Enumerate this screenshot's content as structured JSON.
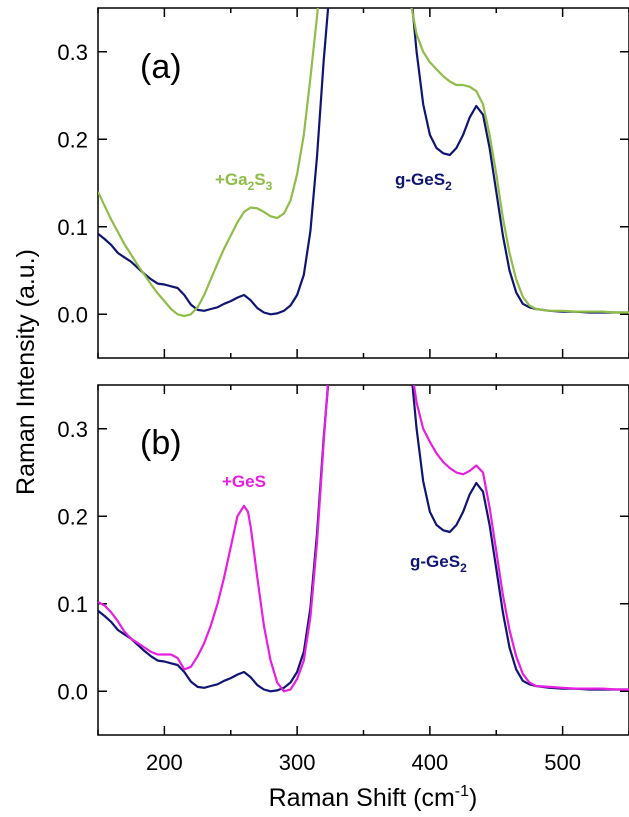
{
  "chart_data": {
    "type": "line",
    "xlabel": "Raman Shift (cm",
    "xlabel_sup": "-1",
    "xlabel_end": ")",
    "ylabel": "Raman Intensity (a.u.)",
    "xlim": [
      150,
      550
    ],
    "ylim": [
      -0.05,
      0.35
    ],
    "x_ticks": [
      "200",
      "300",
      "400",
      "500"
    ],
    "y_ticks": [
      "0.0",
      "0.1",
      "0.2",
      "0.3"
    ],
    "x_tick_values": [
      200,
      300,
      400,
      500
    ],
    "y_tick_values": [
      0.0,
      0.1,
      0.2,
      0.3
    ],
    "colors": {
      "g_ges2": "#101573",
      "ga2s3": "#8fbd48",
      "ges": "#e81ee0"
    },
    "panels": [
      {
        "label": "(a)",
        "annotations": [
          {
            "text": "+Ga",
            "sub": "2",
            "text2": "S",
            "sub2": "3",
            "color": "#8fbd48"
          },
          {
            "text": "g-GeS",
            "sub": "2",
            "color": "#101573"
          }
        ],
        "series": [
          {
            "key": "g_ges2",
            "x": [
              150,
              155,
              160,
              165,
              170,
              175,
              180,
              185,
              190,
              195,
              200,
              205,
              210,
              215,
              220,
              225,
              230,
              235,
              240,
              245,
              250,
              255,
              260,
              265,
              270,
              275,
              280,
              285,
              290,
              295,
              300,
              305,
              310,
              315,
              320,
              325,
              330,
              380,
              385,
              390,
              395,
              400,
              405,
              410,
              415,
              420,
              425,
              430,
              435,
              440,
              445,
              450,
              455,
              460,
              465,
              470,
              475,
              480,
              490,
              500,
              510,
              520,
              530,
              540,
              550
            ],
            "y": [
              0.092,
              0.086,
              0.079,
              0.07,
              0.065,
              0.06,
              0.053,
              0.046,
              0.04,
              0.035,
              0.034,
              0.032,
              0.03,
              0.022,
              0.011,
              0.005,
              0.004,
              0.006,
              0.008,
              0.012,
              0.015,
              0.019,
              0.022,
              0.016,
              0.007,
              0.002,
              0.0,
              0.001,
              0.004,
              0.01,
              0.022,
              0.045,
              0.095,
              0.18,
              0.29,
              0.38,
              0.45,
              0.45,
              0.38,
              0.3,
              0.24,
              0.205,
              0.19,
              0.184,
              0.182,
              0.19,
              0.205,
              0.225,
              0.238,
              0.228,
              0.19,
              0.14,
              0.09,
              0.05,
              0.025,
              0.012,
              0.008,
              0.006,
              0.004,
              0.003,
              0.003,
              0.002,
              0.002,
              0.002,
              0.002
            ]
          },
          {
            "key": "ga2s3",
            "x": [
              150,
              155,
              160,
              165,
              170,
              175,
              180,
              185,
              190,
              195,
              200,
              205,
              210,
              215,
              220,
              225,
              230,
              235,
              240,
              245,
              250,
              255,
              260,
              265,
              270,
              275,
              280,
              285,
              290,
              295,
              300,
              305,
              310,
              315,
              320,
              380,
              385,
              390,
              395,
              400,
              405,
              410,
              415,
              420,
              425,
              430,
              435,
              440,
              445,
              450,
              455,
              460,
              465,
              470,
              475,
              480,
              490,
              500,
              510,
              520,
              530,
              540,
              550
            ],
            "y": [
              0.14,
              0.124,
              0.108,
              0.094,
              0.08,
              0.068,
              0.056,
              0.045,
              0.034,
              0.024,
              0.015,
              0.006,
              0.0,
              -0.002,
              0.0,
              0.008,
              0.022,
              0.04,
              0.058,
              0.075,
              0.09,
              0.105,
              0.117,
              0.122,
              0.121,
              0.117,
              0.112,
              0.11,
              0.115,
              0.13,
              0.16,
              0.205,
              0.27,
              0.34,
              0.42,
              0.42,
              0.36,
              0.32,
              0.3,
              0.288,
              0.28,
              0.272,
              0.266,
              0.262,
              0.262,
              0.26,
              0.255,
              0.24,
              0.205,
              0.16,
              0.11,
              0.07,
              0.04,
              0.02,
              0.01,
              0.006,
              0.004,
              0.004,
              0.003,
              0.003,
              0.003,
              0.002,
              0.002
            ]
          }
        ]
      },
      {
        "label": "(b)",
        "annotations": [
          {
            "text": "+GeS",
            "color": "#e81ee0"
          },
          {
            "text": "g-GeS",
            "sub": "2",
            "color": "#101573"
          }
        ],
        "series": [
          {
            "key": "g_ges2",
            "x": [
              150,
              155,
              160,
              165,
              170,
              175,
              180,
              185,
              190,
              195,
              200,
              205,
              210,
              215,
              220,
              225,
              230,
              235,
              240,
              245,
              250,
              255,
              260,
              265,
              270,
              275,
              280,
              285,
              290,
              295,
              300,
              305,
              310,
              315,
              320,
              325,
              330,
              385,
              390,
              395,
              400,
              405,
              410,
              415,
              420,
              425,
              430,
              435,
              440,
              445,
              450,
              455,
              460,
              465,
              470,
              475,
              480,
              490,
              500,
              510,
              520,
              530,
              540,
              550
            ],
            "y": [
              0.092,
              0.086,
              0.079,
              0.07,
              0.065,
              0.06,
              0.053,
              0.046,
              0.04,
              0.035,
              0.034,
              0.032,
              0.03,
              0.022,
              0.011,
              0.005,
              0.004,
              0.006,
              0.008,
              0.012,
              0.015,
              0.019,
              0.022,
              0.016,
              0.007,
              0.002,
              0.0,
              0.001,
              0.004,
              0.01,
              0.022,
              0.045,
              0.095,
              0.18,
              0.29,
              0.38,
              0.45,
              0.38,
              0.3,
              0.24,
              0.205,
              0.19,
              0.184,
              0.182,
              0.19,
              0.205,
              0.225,
              0.238,
              0.228,
              0.19,
              0.14,
              0.09,
              0.05,
              0.025,
              0.012,
              0.008,
              0.006,
              0.004,
              0.003,
              0.003,
              0.002,
              0.002,
              0.002,
              0.002
            ]
          },
          {
            "key": "ges",
            "x": [
              150,
              155,
              160,
              165,
              170,
              175,
              180,
              185,
              190,
              195,
              200,
              205,
              210,
              215,
              220,
              225,
              230,
              235,
              240,
              245,
              250,
              255,
              260,
              263,
              265,
              270,
              275,
              280,
              285,
              290,
              295,
              300,
              305,
              310,
              315,
              320,
              325,
              330,
              385,
              390,
              395,
              400,
              405,
              410,
              415,
              420,
              425,
              430,
              435,
              440,
              445,
              450,
              455,
              460,
              465,
              470,
              475,
              480,
              490,
              500,
              510,
              520,
              530,
              540,
              550
            ],
            "y": [
              0.102,
              0.098,
              0.09,
              0.08,
              0.068,
              0.06,
              0.055,
              0.05,
              0.045,
              0.042,
              0.042,
              0.042,
              0.038,
              0.025,
              0.028,
              0.04,
              0.055,
              0.075,
              0.1,
              0.13,
              0.165,
              0.2,
              0.212,
              0.205,
              0.188,
              0.13,
              0.075,
              0.035,
              0.01,
              0.0,
              0.002,
              0.014,
              0.035,
              0.085,
              0.17,
              0.285,
              0.39,
              0.46,
              0.38,
              0.33,
              0.3,
              0.285,
              0.272,
              0.262,
              0.255,
              0.25,
              0.248,
              0.252,
              0.258,
              0.25,
              0.21,
              0.16,
              0.11,
              0.07,
              0.04,
              0.02,
              0.01,
              0.006,
              0.005,
              0.004,
              0.003,
              0.003,
              0.003,
              0.002,
              0.002
            ]
          }
        ]
      }
    ]
  }
}
